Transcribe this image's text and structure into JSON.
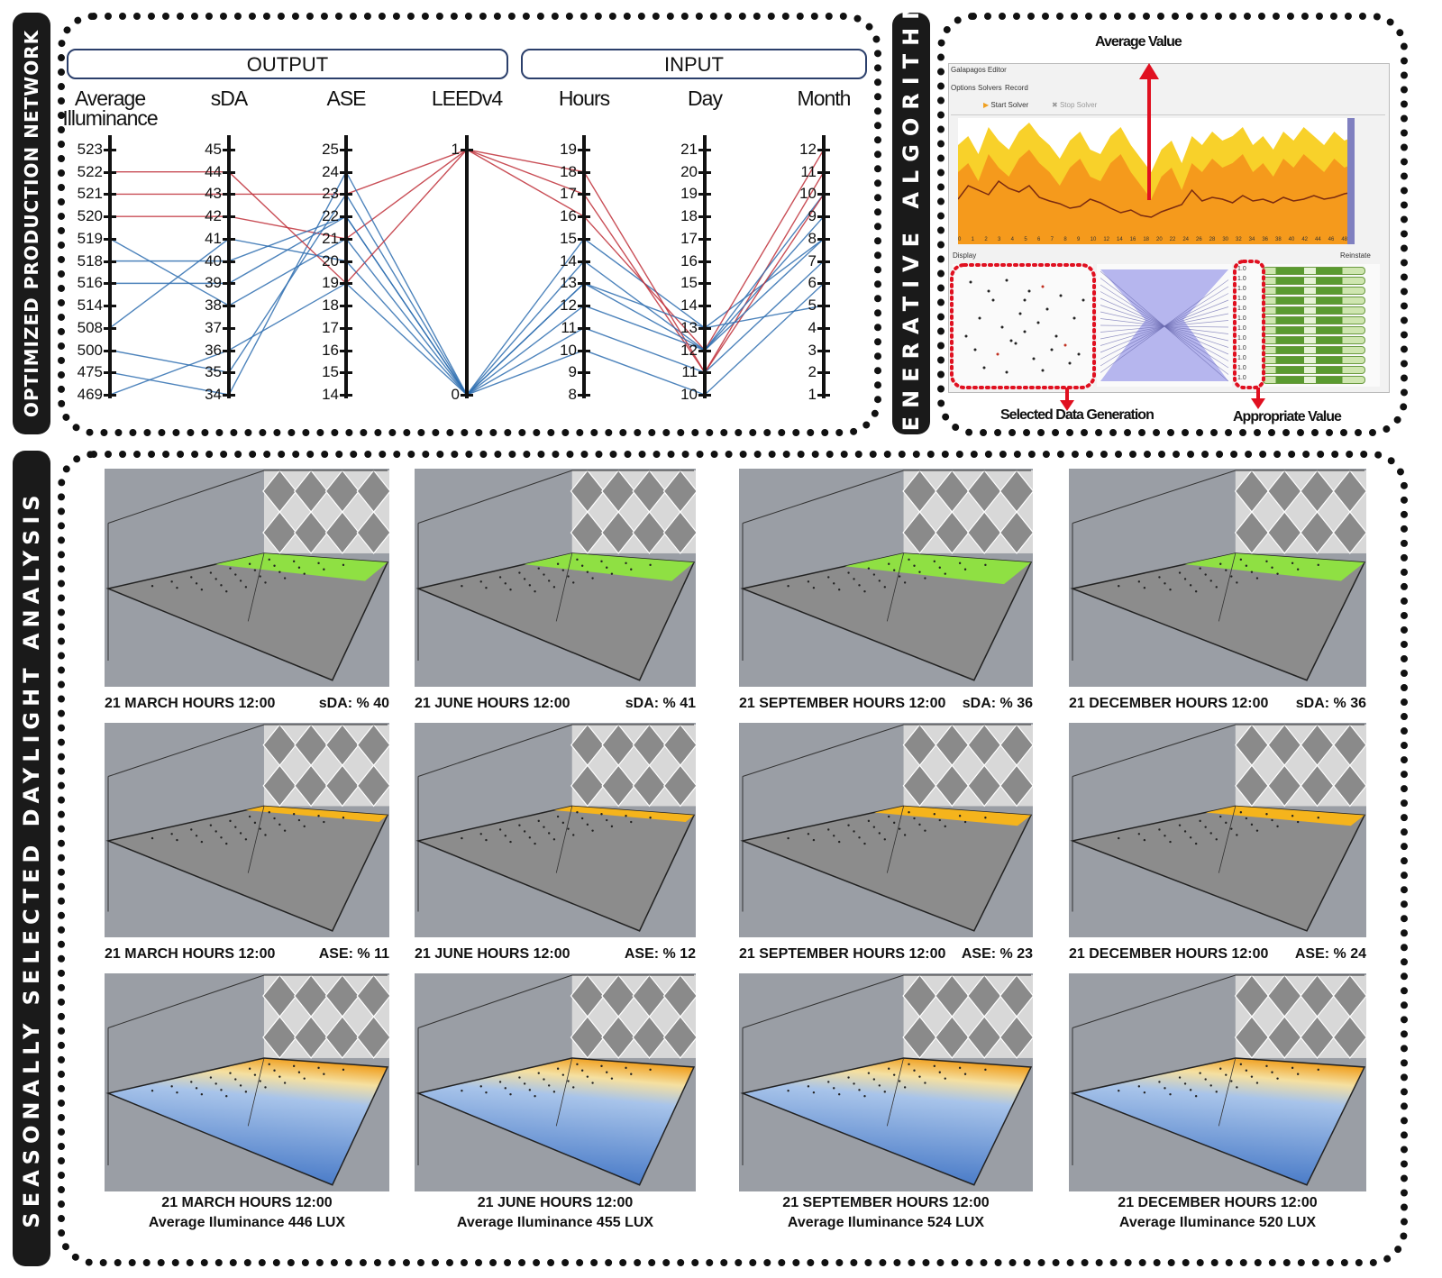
{
  "sections": {
    "production_network": "OPTIMIZED PRODUCTION NETWORK",
    "generative_algorithm": "GENERATIVE ALGORITHM",
    "daylight_analysis": "SEASONALLY SELECTED DAYLIGHT ANALYSIS"
  },
  "network": {
    "output_header": "OUTPUT",
    "input_header": "INPUT",
    "axes": [
      {
        "title_line1": "Average",
        "title_line2": "Illuminance",
        "ticks": [
          "523",
          "522",
          "521",
          "520",
          "519",
          "518",
          "516",
          "514",
          "508",
          "500",
          "475",
          "469"
        ]
      },
      {
        "title_line1": "sDA",
        "title_line2": "",
        "ticks": [
          "45",
          "44",
          "43",
          "42",
          "41",
          "40",
          "39",
          "38",
          "37",
          "36",
          "35",
          "34"
        ]
      },
      {
        "title_line1": "ASE",
        "title_line2": "",
        "ticks": [
          "25",
          "24",
          "23",
          "22",
          "21",
          "20",
          "19",
          "18",
          "17",
          "16",
          "15",
          "14"
        ]
      },
      {
        "title_line1": "LEEDv4",
        "title_line2": "",
        "ticks": [
          "1",
          "0"
        ]
      },
      {
        "title_line1": "Hours",
        "title_line2": "",
        "ticks": [
          "19",
          "18",
          "17",
          "16",
          "15",
          "14",
          "13",
          "12",
          "11",
          "10",
          "9",
          "8"
        ]
      },
      {
        "title_line1": "Day",
        "title_line2": "",
        "ticks": [
          "21",
          "20",
          "19",
          "18",
          "17",
          "16",
          "15",
          "14",
          "13",
          "12",
          "11",
          "10"
        ]
      },
      {
        "title_line1": "Month",
        "title_line2": "",
        "ticks": [
          "12",
          "11",
          "10",
          "9",
          "8",
          "7",
          "6",
          "5",
          "4",
          "3",
          "2",
          "1"
        ]
      }
    ],
    "red_color": "#c0303a",
    "blue_color": "#2f6fb0"
  },
  "galapagos": {
    "window_title": "Galapagos Editor",
    "tabs": [
      "Options",
      "Solvers",
      "Record"
    ],
    "start_solver": "Start Solver",
    "stop_solver": "Stop Solver",
    "display_label": "Display",
    "reinstate_label": "Reinstate",
    "x_ticks": [
      "0",
      "1",
      "2",
      "3",
      "4",
      "5",
      "6",
      "7",
      "8",
      "9",
      "10",
      "12",
      "14",
      "16",
      "18",
      "20",
      "22",
      "24",
      "26",
      "28",
      "30",
      "32",
      "34",
      "36",
      "38",
      "40",
      "42",
      "44",
      "46",
      "48"
    ],
    "genome_values": [
      "1.0",
      "1.0",
      "1.0",
      "1.0",
      "1.0",
      "1.0",
      "1.0",
      "1.0",
      "1.0",
      "1.0",
      "1.0",
      "1.0"
    ],
    "average_value_label": "Average Value",
    "selected_label": "Selected Data Generation",
    "appropriate_label": "Appropriate Value"
  },
  "renders": {
    "sda": [
      {
        "caption": "21 MARCH HOURS 12:00",
        "metric": "sDA: % 40"
      },
      {
        "caption": "21 JUNE HOURS 12:00",
        "metric": "sDA: % 41"
      },
      {
        "caption": "21 SEPTEMBER HOURS 12:00",
        "metric": "sDA: % 36"
      },
      {
        "caption": "21 DECEMBER HOURS 12:00",
        "metric": "sDA: % 36"
      }
    ],
    "ase": [
      {
        "caption": "21 MARCH HOURS 12:00",
        "metric": "ASE: % 11"
      },
      {
        "caption": "21 JUNE HOURS 12:00",
        "metric": "ASE: % 12"
      },
      {
        "caption": "21 SEPTEMBER HOURS 12:00",
        "metric": "ASE: % 23"
      },
      {
        "caption": "21 DECEMBER HOURS 12:00",
        "metric": "ASE: % 24"
      }
    ],
    "illuminance": [
      {
        "caption": "21 MARCH HOURS 12:00",
        "metric": "Average Iluminance 446 LUX"
      },
      {
        "caption": "21 JUNE HOURS 12:00",
        "metric": "Average Iluminance 455 LUX"
      },
      {
        "caption": "21 SEPTEMBER HOURS 12:00",
        "metric": "Average Iluminance 524 LUX"
      },
      {
        "caption": "21 DECEMBER HOURS 12:00",
        "metric": "Average Iluminance 520 LUX"
      }
    ],
    "colors": {
      "sda_fill": "#8fe043",
      "ase_fill": "#f5b41c",
      "floor": "#8c8c8c",
      "background": "#9a9ea5",
      "lux_low": "#3f73c4",
      "lux_high": "#f0a020"
    }
  }
}
